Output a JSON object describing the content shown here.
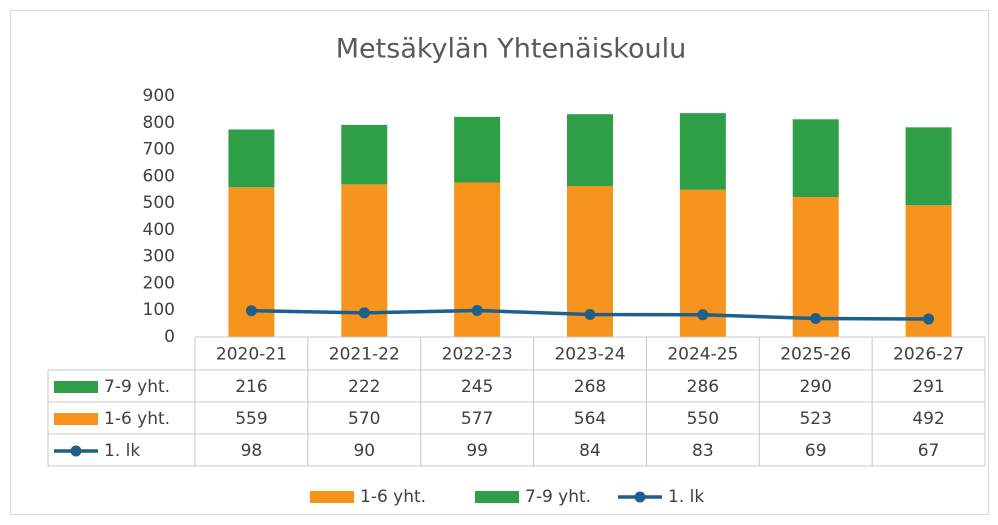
{
  "chart_data": {
    "type": "stacked_bar_line",
    "title": "Metsäkylän Yhtenäiskoulu",
    "categories": [
      "2020-21",
      "2021-22",
      "2022-23",
      "2023-24",
      "2024-25",
      "2025-26",
      "2026-27"
    ],
    "series": [
      {
        "name": "1-6 yht.",
        "type": "bar",
        "color": "#f7941d",
        "values": [
          559,
          570,
          577,
          564,
          550,
          523,
          492
        ]
      },
      {
        "name": "7-9 yht.",
        "type": "bar",
        "color": "#2e9e47",
        "values": [
          216,
          222,
          245,
          268,
          286,
          290,
          291
        ]
      },
      {
        "name": "1. lk",
        "type": "line",
        "color": "#1f5f8b",
        "values": [
          98,
          90,
          99,
          84,
          83,
          69,
          67
        ]
      }
    ],
    "ylim": [
      0,
      900
    ],
    "yticks": [
      0,
      100,
      200,
      300,
      400,
      500,
      600,
      700,
      800,
      900
    ],
    "grid": false
  }
}
